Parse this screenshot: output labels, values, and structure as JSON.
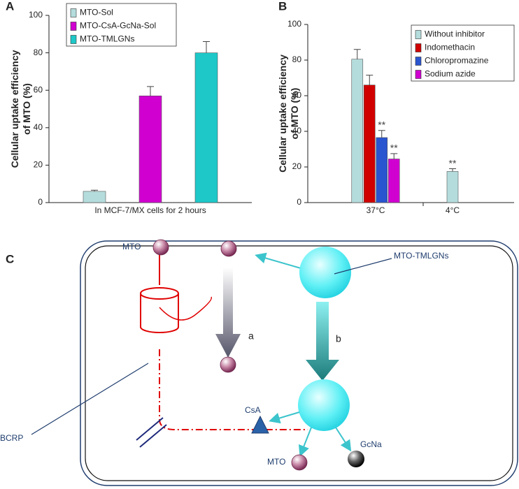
{
  "chart_data": [
    {
      "type": "bar",
      "panel": "A",
      "y_label": [
        "Cellular uptake efficiency",
        "of MTO (%)"
      ],
      "categories": [
        "In MCF-7/MX cells for 2 hours"
      ],
      "series": [
        {
          "name": "MTO-Sol",
          "color": "#b5dcdc",
          "values": [
            6
          ],
          "errors": [
            0.6
          ]
        },
        {
          "name": "MTO-CsA-GcNa-Sol",
          "color": "#d000d0",
          "values": [
            57
          ],
          "errors": [
            5
          ]
        },
        {
          "name": "MTO-TMLGNs",
          "color": "#1ec8c8",
          "values": [
            80
          ],
          "errors": [
            6
          ]
        }
      ],
      "ylim": [
        0,
        100
      ],
      "yticks": [
        0,
        20,
        40,
        60,
        80,
        100
      ],
      "legend": "top-left"
    },
    {
      "type": "bar",
      "panel": "B",
      "y_label": [
        "Cellular uptake efficiency",
        "of MTO (%)"
      ],
      "categories": [
        "37°C",
        "4°C"
      ],
      "series": [
        {
          "name": "Without inhibitor",
          "color": "#b5dcdc",
          "values": [
            80.5,
            17.5
          ],
          "errors": [
            5.5,
            1.5
          ],
          "significance": [
            null,
            "**"
          ]
        },
        {
          "name": "Indomethacin",
          "color": "#d00000",
          "values": [
            66,
            null
          ],
          "errors": [
            5.5,
            null
          ],
          "significance": [
            null,
            null
          ]
        },
        {
          "name": "Chloropromazine",
          "color": "#2a55d0",
          "values": [
            36.5,
            null
          ],
          "errors": [
            4,
            null
          ],
          "significance": [
            "**",
            null
          ]
        },
        {
          "name": "Sodium azide",
          "color": "#d000d0",
          "values": [
            24.5,
            null
          ],
          "errors": [
            3,
            null
          ],
          "significance": [
            "**",
            null
          ]
        }
      ],
      "ylim": [
        0,
        100
      ],
      "yticks": [
        0,
        20,
        40,
        60,
        80,
        100
      ],
      "legend": "top-right"
    }
  ],
  "diagram": {
    "panel": "C",
    "labels": {
      "mto_out": "MTO",
      "nanoparticle": "MTO-TMLGNs",
      "transporter": "BCRP",
      "path_a": "a",
      "path_b": "b",
      "csa": "CsA",
      "mto_in": "MTO",
      "gcna": "GcNa"
    }
  }
}
